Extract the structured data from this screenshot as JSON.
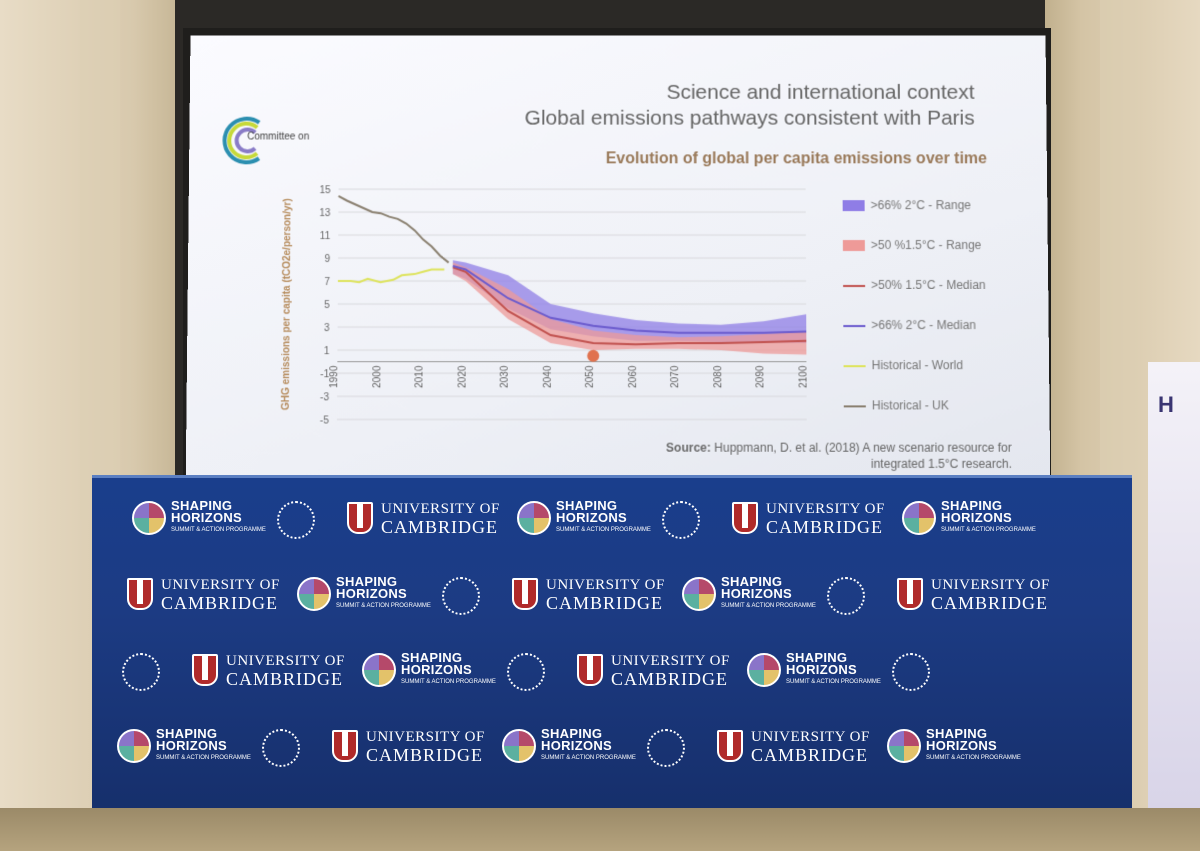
{
  "slide": {
    "org_logo_text": "Committee on",
    "title_line1": "Science and international context",
    "title_line2": "Global emissions pathways consistent with Paris",
    "chart_title": "Evolution of global per capita emissions over time",
    "source_label": "Source:",
    "source_text_1": "Huppmann, D. et al. (2018) A new scenario resource for",
    "source_text_2": "integrated 1.5°C research."
  },
  "chart_data": {
    "type": "area",
    "title": "Evolution of global per capita emissions over time",
    "xlabel": "",
    "ylabel": "GHG emissions per capita (tCO2e/person/yr)",
    "xlim": [
      1990,
      2100
    ],
    "ylim": [
      -5,
      15
    ],
    "x_ticks": [
      "1990",
      "2000",
      "2010",
      "2020",
      "2030",
      "2040",
      "2050",
      "2060",
      "2070",
      "2080",
      "2090",
      "2100"
    ],
    "y_ticks": [
      "15",
      "13",
      "11",
      "9",
      "7",
      "5",
      "3",
      "1",
      "-1",
      "-3",
      "-5"
    ],
    "series": [
      {
        "name": ">66% 2°C - Range",
        "kind": "band",
        "color": "#8f7de6",
        "x": [
          2017,
          2020,
          2030,
          2040,
          2050,
          2060,
          2070,
          2080,
          2090,
          2100
        ],
        "low": [
          7.6,
          7.2,
          4.6,
          2.8,
          2.2,
          1.8,
          1.8,
          1.7,
          1.7,
          1.6
        ],
        "high": [
          8.8,
          8.6,
          7.5,
          5.0,
          4.2,
          3.6,
          3.3,
          3.2,
          3.5,
          4.1
        ]
      },
      {
        "name": ">50 %1.5°C - Range",
        "kind": "band",
        "color": "#ee9a98",
        "x": [
          2017,
          2020,
          2030,
          2040,
          2050,
          2060,
          2070,
          2080,
          2090,
          2100
        ],
        "low": [
          7.6,
          7.0,
          3.7,
          1.6,
          1.0,
          1.1,
          1.1,
          1.0,
          0.7,
          0.6
        ],
        "high": [
          8.6,
          8.2,
          6.3,
          3.7,
          2.7,
          2.3,
          2.1,
          2.2,
          2.4,
          2.6
        ]
      },
      {
        "name": ">50% 1.5°C - Median",
        "kind": "line",
        "color": "#c0504d",
        "x": [
          2017,
          2020,
          2030,
          2040,
          2050,
          2060,
          2070,
          2080,
          2090,
          2100
        ],
        "values": [
          8.2,
          7.8,
          4.4,
          2.3,
          1.6,
          1.5,
          1.6,
          1.6,
          1.7,
          1.8
        ]
      },
      {
        "name": ">66% 2°C - Median",
        "kind": "line",
        "color": "#6a5acd",
        "x": [
          2017,
          2020,
          2030,
          2040,
          2050,
          2060,
          2070,
          2080,
          2090,
          2100
        ],
        "values": [
          8.3,
          8.0,
          5.5,
          3.8,
          3.1,
          2.7,
          2.5,
          2.5,
          2.5,
          2.6
        ]
      },
      {
        "name": "Historical - World",
        "kind": "line",
        "color": "#dde35a",
        "x": [
          1990,
          1993,
          1995,
          1997,
          2000,
          2003,
          2005,
          2008,
          2010,
          2012,
          2015
        ],
        "values": [
          7.0,
          7.0,
          6.9,
          7.2,
          6.9,
          7.1,
          7.5,
          7.6,
          7.8,
          8.0,
          8.0
        ]
      },
      {
        "name": "Historical - UK",
        "kind": "line",
        "color": "#8a8070",
        "x": [
          1990,
          1992,
          1995,
          1998,
          2000,
          2002,
          2004,
          2006,
          2008,
          2010,
          2012,
          2014,
          2016
        ],
        "values": [
          14.4,
          14.0,
          13.5,
          13.0,
          12.9,
          12.6,
          12.4,
          12.0,
          11.4,
          10.6,
          10.0,
          9.2,
          8.6
        ]
      }
    ],
    "marker": {
      "x": 2050,
      "y": 0.5,
      "color": "#e0724f"
    }
  },
  "backdrop": {
    "shaping_line1": "SHAPING",
    "shaping_line2": "HORIZONS",
    "shaping_tag": "SUMMIT & ACTION PROGRAMME",
    "cam_line1": "UNIVERSITY OF",
    "cam_line2": "CAMBRIDGE"
  },
  "side_banner": {
    "letter": "H"
  }
}
